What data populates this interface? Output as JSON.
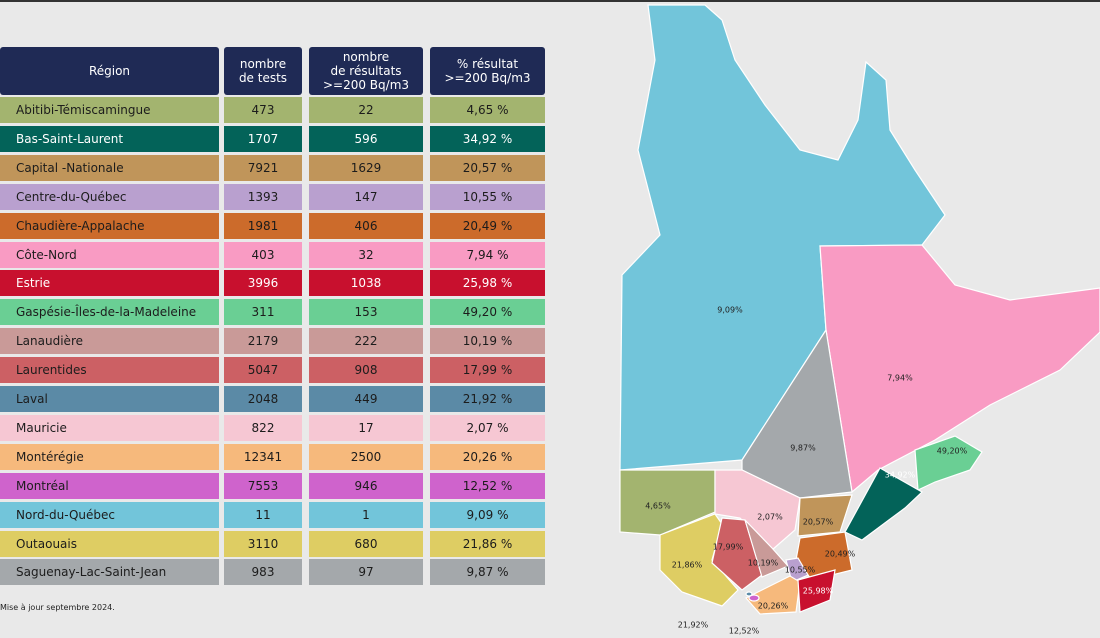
{
  "table": {
    "header": [
      "Région",
      "nombre\nde tests",
      "nombre\nde résultats\n>=200 Bq/m3",
      "% résultat\n>=200 Bq/m3"
    ],
    "rows": [
      [
        "Abitibi-Témiscamingue",
        "473",
        "22",
        "4,65 %"
      ],
      [
        "Bas-Saint-Laurent",
        "1707",
        "596",
        "34,92 %"
      ],
      [
        "Capital -Nationale",
        "7921",
        "1629",
        "20,57 %"
      ],
      [
        "Centre-du-Québec",
        "1393",
        "147",
        "10,55 %"
      ],
      [
        "Chaudière-Appalache",
        "1981",
        "406",
        "20,49 %"
      ],
      [
        "Côte-Nord",
        "403",
        "32",
        "7,94 %"
      ],
      [
        "Estrie",
        "3996",
        "1038",
        "25,98 %"
      ],
      [
        "Gaspésie-Îles-de-la-Madeleine",
        "311",
        "153",
        "49,20 %"
      ],
      [
        "Lanaudière",
        "2179",
        "222",
        "10,19 %"
      ],
      [
        "Laurentides",
        "5047",
        "908",
        "17,99 %"
      ],
      [
        "Laval",
        "2048",
        "449",
        "21,92 %"
      ],
      [
        "Mauricie",
        "822",
        "17",
        "2,07 %"
      ],
      [
        "Montérégie",
        "12341",
        "2500",
        "20,26 %"
      ],
      [
        "Montréal",
        "7553",
        "946",
        "12,52 %"
      ],
      [
        "Nord-du-Québec",
        "11",
        "1",
        "9,09 %"
      ],
      [
        "Outaouais",
        "3110",
        "680",
        "21,86 %"
      ],
      [
        "Saguenay-Lac-Saint-Jean",
        "983",
        "97",
        "9,87 %"
      ]
    ]
  },
  "footnote": "Mise à jour septembre 2024.",
  "map": {
    "labels": [
      "9,09%",
      "7,94%",
      "9,87%",
      "49,20%",
      "34,92%",
      "4,65%",
      "2,07%",
      "20,57%",
      "17,99%",
      "21,86%",
      "10,19%",
      "20,49%",
      "10,55%",
      "25,98%",
      "20,26%",
      "21,92%",
      "12,52%"
    ]
  }
}
